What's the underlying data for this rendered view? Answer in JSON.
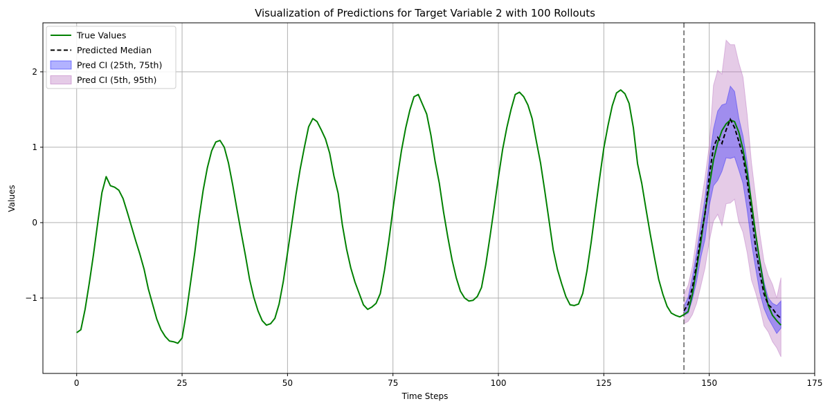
{
  "chart_data": {
    "type": "line",
    "title": "Visualization of Predictions for Target Variable 2 with 100 Rollouts",
    "xlabel": "Time Steps",
    "ylabel": "Values",
    "xlim": [
      -8,
      175
    ],
    "ylim": [
      -2.0,
      2.65
    ],
    "xticks": [
      0,
      25,
      50,
      75,
      100,
      125,
      150,
      175
    ],
    "yticks": [
      -1,
      0,
      1,
      2
    ],
    "xtick_labels": [
      "0",
      "25",
      "50",
      "75",
      "100",
      "125",
      "150",
      "175"
    ],
    "ytick_labels": [
      "−1",
      "0",
      "1",
      "2"
    ],
    "grid": true,
    "legend_position": "top-left",
    "forecast_start": 144,
    "colors": {
      "true": "#008000",
      "median": "#000000",
      "ci_inner": "#0000ff",
      "ci_outer": "#b86fbd",
      "vline": "#808080",
      "grid": "#b0b0b0"
    },
    "series": [
      {
        "name": "True Values",
        "x": [
          0,
          1,
          2,
          3,
          4,
          5,
          6,
          7,
          8,
          9,
          10,
          11,
          12,
          13,
          14,
          15,
          16,
          17,
          18,
          19,
          20,
          21,
          22,
          23,
          24,
          25,
          26,
          27,
          28,
          29,
          30,
          31,
          32,
          33,
          34,
          35,
          36,
          37,
          38,
          39,
          40,
          41,
          42,
          43,
          44,
          45,
          46,
          47,
          48,
          49,
          50,
          51,
          52,
          53,
          54,
          55,
          56,
          57,
          58,
          59,
          60,
          61,
          62,
          63,
          64,
          65,
          66,
          67,
          68,
          69,
          70,
          71,
          72,
          73,
          74,
          75,
          76,
          77,
          78,
          79,
          80,
          81,
          82,
          83,
          84,
          85,
          86,
          87,
          88,
          89,
          90,
          91,
          92,
          93,
          94,
          95,
          96,
          97,
          98,
          99,
          100,
          101,
          102,
          103,
          104,
          105,
          106,
          107,
          108,
          109,
          110,
          111,
          112,
          113,
          114,
          115,
          116,
          117,
          118,
          119,
          120,
          121,
          122,
          123,
          124,
          125,
          126,
          127,
          128,
          129,
          130,
          131,
          132,
          133,
          134,
          135,
          136,
          137,
          138,
          139,
          140,
          141,
          142,
          143,
          144,
          145,
          146,
          147,
          148,
          149,
          150,
          151,
          152,
          153,
          154,
          155,
          156,
          157,
          158,
          159,
          160,
          161,
          162,
          163,
          164,
          165,
          166,
          167
        ],
        "values": [
          -1.46,
          -1.42,
          -1.15,
          -0.8,
          -0.42,
          0.0,
          0.4,
          0.61,
          0.49,
          0.47,
          0.43,
          0.32,
          0.14,
          -0.05,
          -0.24,
          -0.42,
          -0.62,
          -0.88,
          -1.08,
          -1.28,
          -1.42,
          -1.51,
          -1.57,
          -1.58,
          -1.6,
          -1.53,
          -1.2,
          -0.8,
          -0.4,
          0.05,
          0.43,
          0.73,
          0.95,
          1.07,
          1.09,
          1.0,
          0.79,
          0.5,
          0.18,
          -0.13,
          -0.43,
          -0.75,
          -0.99,
          -1.17,
          -1.3,
          -1.36,
          -1.34,
          -1.27,
          -1.08,
          -0.78,
          -0.4,
          -0.02,
          0.37,
          0.71,
          1.0,
          1.27,
          1.38,
          1.34,
          1.23,
          1.11,
          0.92,
          0.62,
          0.39,
          -0.03,
          -0.35,
          -0.6,
          -0.79,
          -0.94,
          -1.09,
          -1.15,
          -1.12,
          -1.07,
          -0.94,
          -0.63,
          -0.25,
          0.18,
          0.58,
          0.95,
          1.25,
          1.49,
          1.67,
          1.7,
          1.57,
          1.44,
          1.16,
          0.81,
          0.52,
          0.14,
          -0.19,
          -0.49,
          -0.73,
          -0.91,
          -1.0,
          -1.04,
          -1.03,
          -0.98,
          -0.86,
          -0.56,
          -0.19,
          0.2,
          0.6,
          0.97,
          1.26,
          1.5,
          1.7,
          1.73,
          1.67,
          1.56,
          1.38,
          1.08,
          0.79,
          0.42,
          0.03,
          -0.36,
          -0.62,
          -0.81,
          -0.98,
          -1.09,
          -1.1,
          -1.08,
          -0.94,
          -0.64,
          -0.26,
          0.17,
          0.59,
          0.99,
          1.29,
          1.55,
          1.72,
          1.76,
          1.71,
          1.58,
          1.26,
          0.78,
          0.52,
          0.18,
          -0.15,
          -0.46,
          -0.75,
          -0.95,
          -1.11,
          -1.2,
          -1.23,
          -1.25,
          -1.22,
          -1.18,
          -0.95,
          -0.61,
          -0.26,
          0.14,
          0.48,
          0.83,
          1.06,
          1.22,
          1.31,
          1.36,
          1.34,
          1.2,
          0.97,
          0.66,
          0.27,
          -0.15,
          -0.52,
          -0.86,
          -1.1,
          -1.23,
          -1.3,
          -1.36
        ]
      },
      {
        "name": "Predicted Median",
        "x": [
          144,
          145,
          146,
          147,
          148,
          149,
          150,
          151,
          152,
          153,
          154,
          155,
          156,
          157,
          158,
          159,
          160,
          161,
          162,
          163,
          164,
          165,
          166,
          167
        ],
        "values": [
          -1.17,
          -1.08,
          -0.86,
          -0.55,
          -0.18,
          0.12,
          0.62,
          1.0,
          1.13,
          1.05,
          1.23,
          1.37,
          1.26,
          1.08,
          0.88,
          0.55,
          0.13,
          -0.33,
          -0.67,
          -0.95,
          -1.09,
          -1.14,
          -1.22,
          -1.27
        ]
      }
    ],
    "bands": [
      {
        "name": "Pred CI (5th, 95th)",
        "x": [
          144,
          145,
          146,
          147,
          148,
          149,
          150,
          151,
          152,
          153,
          154,
          155,
          156,
          157,
          158,
          159,
          160,
          161,
          162,
          163,
          164,
          165,
          166,
          167
        ],
        "lower": [
          -1.34,
          -1.31,
          -1.22,
          -1.07,
          -0.84,
          -0.6,
          -0.25,
          0.02,
          0.11,
          -0.04,
          0.25,
          0.26,
          0.31,
          0.01,
          -0.13,
          -0.4,
          -0.76,
          -0.93,
          -1.13,
          -1.37,
          -1.45,
          -1.58,
          -1.66,
          -1.78
        ],
        "upper": [
          -0.95,
          -0.83,
          -0.58,
          -0.19,
          0.24,
          0.6,
          1.02,
          1.82,
          2.02,
          1.97,
          2.42,
          2.36,
          2.36,
          2.12,
          1.93,
          1.43,
          0.8,
          0.34,
          -0.15,
          -0.52,
          -0.7,
          -0.82,
          -1.0,
          -0.73
        ]
      },
      {
        "name": "Pred CI (25th, 75th)",
        "x": [
          144,
          145,
          146,
          147,
          148,
          149,
          150,
          151,
          152,
          153,
          154,
          155,
          156,
          157,
          158,
          159,
          160,
          161,
          162,
          163,
          164,
          165,
          166,
          167
        ],
        "lower": [
          -1.23,
          -1.2,
          -1.02,
          -0.78,
          -0.46,
          -0.22,
          0.22,
          0.49,
          0.56,
          0.68,
          0.86,
          0.85,
          0.87,
          0.7,
          0.52,
          0.16,
          -0.27,
          -0.61,
          -0.93,
          -1.14,
          -1.27,
          -1.37,
          -1.47,
          -1.4
        ],
        "upper": [
          -1.11,
          -0.99,
          -0.72,
          -0.39,
          -0.03,
          0.33,
          0.82,
          1.24,
          1.48,
          1.56,
          1.58,
          1.81,
          1.74,
          1.39,
          1.15,
          0.8,
          0.3,
          -0.15,
          -0.48,
          -0.79,
          -1.0,
          -1.07,
          -1.1,
          -1.04
        ]
      }
    ],
    "legend": [
      {
        "label": "True Values",
        "kind": "line-solid",
        "color": "#008000"
      },
      {
        "label": "Predicted Median",
        "kind": "line-dashed",
        "color": "#000000"
      },
      {
        "label": "Pred CI (25th, 75th)",
        "kind": "patch",
        "color": "#0000ff"
      },
      {
        "label": "Pred CI (5th, 95th)",
        "kind": "patch",
        "color": "#b86fbd"
      }
    ]
  }
}
